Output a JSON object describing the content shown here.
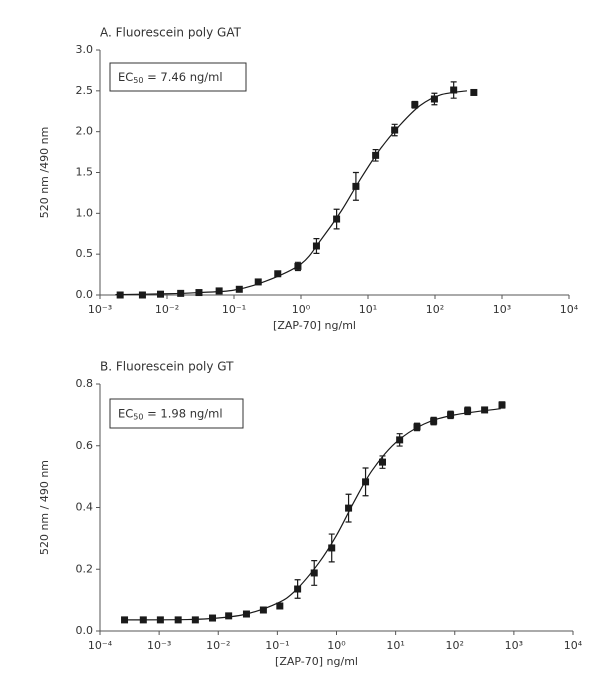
{
  "chart_data": [
    {
      "type": "scatter",
      "title": "A. Fluorescein poly GAT",
      "annotation": [
        "EC",
        "50",
        " = 7.46 ng/ml"
      ],
      "xlabel": "[ZAP-70] ng/ml",
      "ylabel": "520 nm /490 nm",
      "xscale": "log",
      "color": "#1a1a1a",
      "x": [
        0.002,
        0.0043,
        0.008,
        0.016,
        0.03,
        0.06,
        0.12,
        0.23,
        0.45,
        0.9,
        1.7,
        3.4,
        6.6,
        13,
        25,
        50,
        98,
        190,
        380
      ],
      "values": [
        0.0,
        0.0,
        0.01,
        0.02,
        0.03,
        0.05,
        0.07,
        0.16,
        0.26,
        0.35,
        0.6,
        0.93,
        1.33,
        1.71,
        2.02,
        2.33,
        2.4,
        2.51,
        2.48
      ],
      "errors": [
        null,
        null,
        null,
        null,
        null,
        null,
        null,
        null,
        0.03,
        0.05,
        0.09,
        0.12,
        0.17,
        0.07,
        0.07,
        0.04,
        0.07,
        0.1,
        null
      ],
      "curve": {
        "x": [
          0.0017,
          0.01,
          0.03,
          0.1,
          0.3,
          1,
          2,
          4,
          7.46,
          15,
          30,
          60,
          120,
          300
        ],
        "values": [
          0.005,
          0.015,
          0.03,
          0.06,
          0.17,
          0.38,
          0.68,
          1.03,
          1.4,
          1.78,
          2.08,
          2.32,
          2.45,
          2.5
        ]
      },
      "xlim": [
        0.001,
        10000
      ],
      "xticks": [
        {
          "value": 0.001,
          "label": "10⁻³"
        },
        {
          "value": 0.01,
          "label": "10⁻²"
        },
        {
          "value": 0.1,
          "label": "10⁻¹"
        },
        {
          "value": 1,
          "label": "10⁰"
        },
        {
          "value": 10,
          "label": "10¹"
        },
        {
          "value": 100,
          "label": "10²"
        },
        {
          "value": 1000,
          "label": "10³"
        },
        {
          "value": 10000,
          "label": "10⁴"
        }
      ],
      "ylim": [
        0,
        3
      ],
      "yticks": [
        {
          "value": 0,
          "label": "0.0"
        },
        0.5,
        {
          "value": 1,
          "label": "1.0"
        },
        1.5,
        {
          "value": 2,
          "label": "2.0"
        },
        2.5,
        {
          "value": 3,
          "label": "3.0"
        }
      ]
    },
    {
      "type": "scatter",
      "title": "B. Fluorescein poly GT",
      "annotation": [
        "EC",
        "50",
        " = 1.98 ng/ml"
      ],
      "xlabel": "[ZAP-70] ng/ml",
      "ylabel": "520 nm / 490 nm",
      "xscale": "log",
      "color": "#1a1a1a",
      "x": [
        0.00026,
        0.00054,
        0.00105,
        0.0021,
        0.0041,
        0.008,
        0.015,
        0.03,
        0.058,
        0.11,
        0.22,
        0.42,
        0.83,
        1.6,
        3.1,
        6.0,
        11.7,
        23,
        44,
        85,
        165,
        320,
        630
      ],
      "values": [
        0.036,
        0.036,
        0.036,
        0.036,
        0.036,
        0.042,
        0.049,
        0.055,
        0.068,
        0.081,
        0.136,
        0.188,
        0.269,
        0.398,
        0.483,
        0.547,
        0.619,
        0.661,
        0.68,
        0.7,
        0.713,
        0.716,
        0.732
      ],
      "errors": [
        null,
        null,
        null,
        null,
        null,
        null,
        null,
        null,
        null,
        null,
        0.03,
        0.04,
        0.045,
        0.045,
        0.045,
        0.02,
        0.02,
        0.012,
        0.012,
        0.012,
        0.012,
        null,
        0.01
      ],
      "curve": {
        "x": [
          0.00025,
          0.003,
          0.01,
          0.03,
          0.1,
          0.2,
          0.5,
          1,
          2,
          4,
          10,
          30,
          100,
          600
        ],
        "values": [
          0.036,
          0.037,
          0.042,
          0.055,
          0.09,
          0.13,
          0.22,
          0.31,
          0.42,
          0.52,
          0.61,
          0.67,
          0.7,
          0.72
        ]
      },
      "xlim": [
        0.0001,
        10000
      ],
      "xticks": [
        {
          "value": 0.0001,
          "label": "10⁻⁴"
        },
        {
          "value": 0.001,
          "label": "10⁻³"
        },
        {
          "value": 0.01,
          "label": "10⁻²"
        },
        {
          "value": 0.1,
          "label": "10⁻¹"
        },
        {
          "value": 1,
          "label": "10⁰"
        },
        {
          "value": 10,
          "label": "10¹"
        },
        {
          "value": 100,
          "label": "10²"
        },
        {
          "value": 1000,
          "label": "10³"
        },
        {
          "value": 10000,
          "label": "10⁴"
        }
      ],
      "ylim": [
        0,
        0.8
      ],
      "yticks": [
        {
          "value": 0,
          "label": "0.0"
        },
        0.2,
        0.4,
        0.6,
        0.8
      ]
    }
  ]
}
